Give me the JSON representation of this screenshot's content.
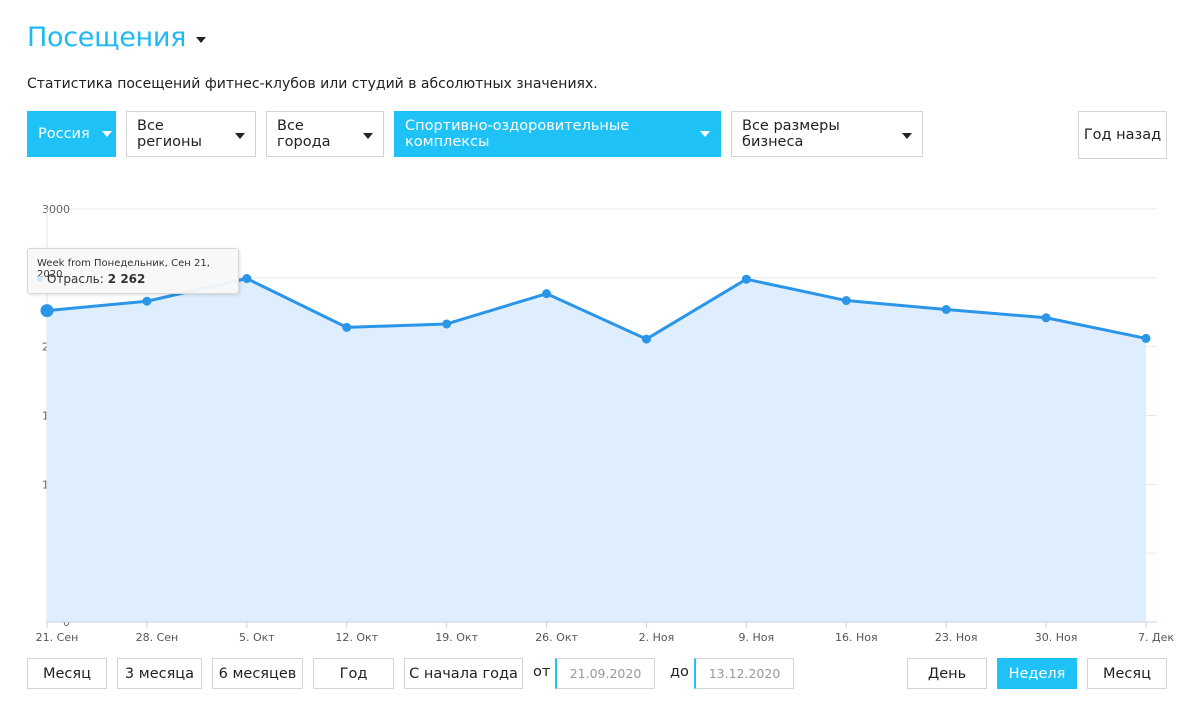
{
  "header": {
    "title": "Посещения",
    "subtitle": "Статистика посещений фитнес-клубов или студий в абсолютных значениях."
  },
  "filters": [
    {
      "label": "Россия",
      "active": true
    },
    {
      "label": "Все регионы",
      "active": false
    },
    {
      "label": "Все города",
      "active": false
    },
    {
      "label": "Спортивно-оздоровительные комплексы",
      "active": true
    },
    {
      "label": "Все размеры бизнеса",
      "active": false
    }
  ],
  "year_back_button": "Год назад",
  "tooltip": {
    "header": "Week from Понедельник, Сен 21, 2020",
    "series": "Отрасль:",
    "value": "2 262"
  },
  "colors": {
    "accent": "#1fc2f6",
    "line": "#2b96e8",
    "area": "#deeefc"
  },
  "chart_data": {
    "type": "area",
    "x": [
      "21. Сен",
      "28. Сен",
      "5. Окт",
      "12. Окт",
      "19. Окт",
      "26. Окт",
      "2. Ноя",
      "9. Ноя",
      "16. Ноя",
      "23. Ноя",
      "30. Ноя",
      "7. Дек"
    ],
    "series": [
      {
        "name": "Отрасль",
        "values": [
          2262,
          2330,
          2495,
          2140,
          2165,
          2385,
          2055,
          2490,
          2335,
          2270,
          2210,
          2060
        ]
      }
    ],
    "ylim": [
      0,
      3000
    ],
    "yticks": [
      0,
      500,
      1000,
      1500,
      2000,
      3000
    ],
    "grid": true
  },
  "period_buttons": [
    {
      "label": "Месяц",
      "active": false
    },
    {
      "label": "3 месяца",
      "active": false
    },
    {
      "label": "6 месяцев",
      "active": false
    },
    {
      "label": "Год",
      "active": false
    },
    {
      "label": "С начала года",
      "active": false
    }
  ],
  "date_range": {
    "from_label": "от",
    "from_value": "21.09.2020",
    "to_label": "до",
    "to_value": "13.12.2020"
  },
  "granularity_buttons": [
    {
      "label": "День",
      "active": false
    },
    {
      "label": "Неделя",
      "active": true
    },
    {
      "label": "Месяц",
      "active": false
    }
  ]
}
